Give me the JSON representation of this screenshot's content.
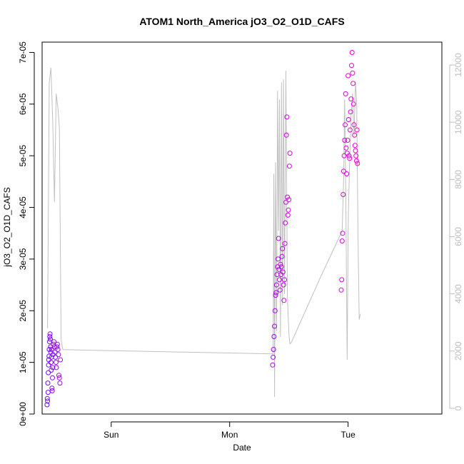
{
  "chart_data": {
    "type": "scatter",
    "title": "ATOM1 North_America jO3_O2_O1D_CAFS",
    "xlabel": "Date",
    "ylabel": "jO3_O2_O1D_CAFS",
    "x_ticks": [
      {
        "label": "Sun",
        "hour": 24
      },
      {
        "label": "Mon",
        "hour": 48
      },
      {
        "label": "Tue",
        "hour": 72
      }
    ],
    "x_range_hours": [
      10.0,
      91.0
    ],
    "ylim": [
      0,
      7.2e-05
    ],
    "y_ticks": [
      {
        "value": 0,
        "label": "0e+00"
      },
      {
        "value": 1e-05,
        "label": "1e-05"
      },
      {
        "value": 2e-05,
        "label": "2e-05"
      },
      {
        "value": 3e-05,
        "label": "3e-05"
      },
      {
        "value": 4e-05,
        "label": "4e-05"
      },
      {
        "value": 5e-05,
        "label": "5e-05"
      },
      {
        "value": 6e-05,
        "label": "6e-05"
      },
      {
        "value": 7e-05,
        "label": "7e-05"
      }
    ],
    "y2lim": [
      -200,
      12800
    ],
    "y2_ticks": [
      {
        "value": 0,
        "label": "0"
      },
      {
        "value": 2000,
        "label": "2000"
      },
      {
        "value": 4000,
        "label": "4000"
      },
      {
        "value": 6000,
        "label": "6000"
      },
      {
        "value": 8000,
        "label": "8000"
      },
      {
        "value": 10000,
        "label": "10000"
      },
      {
        "value": 12000,
        "label": "12000"
      }
    ],
    "colors": {
      "line": "#c0c0c0",
      "points_start": "#6a0dff",
      "points_end": "#ff00cc"
    },
    "line_series": [
      [
        11.1,
        2800
      ],
      [
        11.45,
        11400
      ],
      [
        11.8,
        11900
      ],
      [
        12.15,
        10000
      ],
      [
        12.5,
        7200
      ],
      [
        12.85,
        11000
      ],
      [
        13.2,
        10500
      ],
      [
        13.5,
        9800
      ],
      [
        13.85,
        2400
      ],
      [
        14.2,
        2050
      ],
      [
        56.8,
        1900
      ],
      [
        56.95,
        8200
      ],
      [
        57.1,
        400
      ],
      [
        57.3,
        8600
      ],
      [
        57.5,
        2700
      ],
      [
        57.7,
        11100
      ],
      [
        57.9,
        6200
      ],
      [
        58.1,
        10800
      ],
      [
        58.3,
        2500
      ],
      [
        58.5,
        11400
      ],
      [
        58.7,
        3600
      ],
      [
        58.9,
        11500
      ],
      [
        59.1,
        4000
      ],
      [
        59.4,
        11800
      ],
      [
        59.7,
        3900
      ],
      [
        60.0,
        2600
      ],
      [
        60.2,
        2250
      ],
      [
        60.5,
        2300
      ],
      [
        66.2,
        4500
      ],
      [
        70.8,
        6200
      ],
      [
        71.1,
        8000
      ],
      [
        71.3,
        10800
      ],
      [
        71.55,
        7200
      ],
      [
        71.8,
        1700
      ],
      [
        72.05,
        6800
      ],
      [
        72.3,
        8500
      ],
      [
        72.6,
        10200
      ],
      [
        72.9,
        11000
      ],
      [
        73.2,
        9500
      ],
      [
        73.5,
        11400
      ],
      [
        73.75,
        10700
      ],
      [
        74.0,
        6000
      ],
      [
        74.25,
        3100
      ],
      [
        74.5,
        3300
      ]
    ],
    "point_series": [
      [
        11.0,
        1.8e-06
      ],
      [
        11.05,
        3e-06
      ],
      [
        11.1,
        2.5e-06
      ],
      [
        11.15,
        6e-06
      ],
      [
        11.2,
        4.2e-06
      ],
      [
        11.25,
        8e-06
      ],
      [
        11.3,
        9.5e-06
      ],
      [
        11.35,
        1.05e-05
      ],
      [
        11.4,
        1.12e-05
      ],
      [
        11.45,
        1.25e-05
      ],
      [
        11.5,
        1.4e-05
      ],
      [
        11.55,
        1.5e-05
      ],
      [
        11.6,
        1.55e-05
      ],
      [
        11.65,
        1.45e-05
      ],
      [
        11.7,
        1.3e-05
      ],
      [
        11.75,
        1.2e-05
      ],
      [
        11.8,
        1e-05
      ],
      [
        11.85,
        8.5e-06
      ],
      [
        11.9,
        1.1e-05
      ],
      [
        11.95,
        1.25e-05
      ],
      [
        12.0,
        5e-06
      ],
      [
        12.05,
        4.5e-06
      ],
      [
        12.1,
        7e-06
      ],
      [
        12.15,
        9e-06
      ],
      [
        12.2,
        1.15e-05
      ],
      [
        12.3,
        1.35e-05
      ],
      [
        12.4,
        1.4e-05
      ],
      [
        12.5,
        1.3e-05
      ],
      [
        12.6,
        1.2e-05
      ],
      [
        12.7,
        1.1e-05
      ],
      [
        12.8,
        1e-05
      ],
      [
        12.9,
        9e-06
      ],
      [
        13.0,
        1.3e-05
      ],
      [
        13.1,
        1.35e-05
      ],
      [
        13.2,
        1.25e-05
      ],
      [
        13.3,
        1.15e-05
      ],
      [
        13.4,
        7.5e-06
      ],
      [
        13.5,
        7e-06
      ],
      [
        13.6,
        6e-06
      ],
      [
        13.7,
        1.05e-05
      ],
      [
        56.7,
        9.5e-06
      ],
      [
        56.8,
        1.1e-05
      ],
      [
        56.9,
        1.25e-05
      ],
      [
        57.0,
        1.5e-05
      ],
      [
        57.1,
        1.7e-05
      ],
      [
        57.2,
        2e-05
      ],
      [
        57.3,
        2.3e-05
      ],
      [
        57.4,
        2.35e-05
      ],
      [
        57.5,
        2.5e-05
      ],
      [
        57.6,
        2.7e-05
      ],
      [
        57.7,
        2.85e-05
      ],
      [
        57.8,
        3e-05
      ],
      [
        57.9,
        3.4e-05
      ],
      [
        58.0,
        2.8e-05
      ],
      [
        58.1,
        2.6e-05
      ],
      [
        58.2,
        2.4e-05
      ],
      [
        58.3,
        2.9e-05
      ],
      [
        58.4,
        2.7e-05
      ],
      [
        58.5,
        2.85e-05
      ],
      [
        58.6,
        3.05e-05
      ],
      [
        58.7,
        3.2e-05
      ],
      [
        58.8,
        2.75e-05
      ],
      [
        58.9,
        2.5e-05
      ],
      [
        59.0,
        2.2e-05
      ],
      [
        59.1,
        2.6e-05
      ],
      [
        59.2,
        3.3e-05
      ],
      [
        59.3,
        3.7e-05
      ],
      [
        59.4,
        4.1e-05
      ],
      [
        59.5,
        5.4e-05
      ],
      [
        59.6,
        5.75e-05
      ],
      [
        59.7,
        4.2e-05
      ],
      [
        59.8,
        3.85e-05
      ],
      [
        59.9,
        3.95e-05
      ],
      [
        60.0,
        4.15e-05
      ],
      [
        60.1,
        4.8e-05
      ],
      [
        60.2,
        5.05e-05
      ],
      [
        70.6,
        2.4e-05
      ],
      [
        70.7,
        2.6e-05
      ],
      [
        70.8,
        3.35e-05
      ],
      [
        70.9,
        3.5e-05
      ],
      [
        71.0,
        4.25e-05
      ],
      [
        71.1,
        4.7e-05
      ],
      [
        71.2,
        5e-05
      ],
      [
        71.3,
        5.3e-05
      ],
      [
        71.4,
        5.6e-05
      ],
      [
        71.5,
        6.2e-05
      ],
      [
        71.6,
        5.15e-05
      ],
      [
        71.7,
        4.65e-05
      ],
      [
        71.8,
        5.05e-05
      ],
      [
        71.9,
        5.3e-05
      ],
      [
        72.0,
        6.55e-05
      ],
      [
        72.1,
        5.7e-05
      ],
      [
        72.2,
        5e-05
      ],
      [
        72.3,
        4.95e-05
      ],
      [
        72.4,
        5.5e-05
      ],
      [
        72.5,
        5.85e-05
      ],
      [
        72.6,
        6.1e-05
      ],
      [
        72.7,
        6.75e-05
      ],
      [
        72.8,
        7e-05
      ],
      [
        72.9,
        6.6e-05
      ],
      [
        73.0,
        6.4e-05
      ],
      [
        73.1,
        6e-05
      ],
      [
        73.2,
        5.6e-05
      ],
      [
        73.3,
        5.4e-05
      ],
      [
        73.4,
        5.2e-05
      ],
      [
        73.5,
        5.1e-05
      ],
      [
        73.6,
        5e-05
      ],
      [
        73.7,
        4.9e-05
      ],
      [
        73.8,
        5.5e-05
      ],
      [
        73.9,
        4.85e-05
      ]
    ]
  }
}
